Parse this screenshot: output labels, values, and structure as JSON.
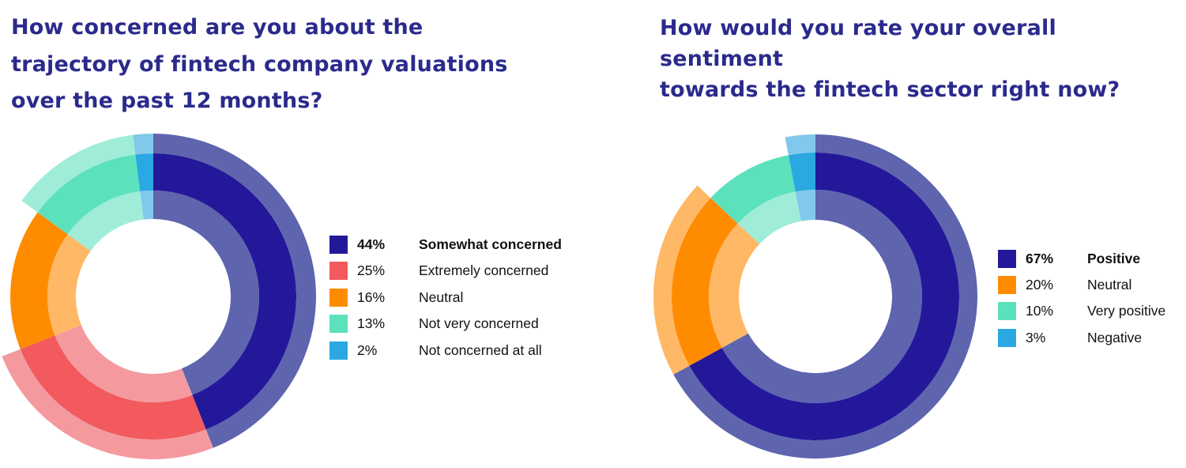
{
  "chart_data": [
    {
      "type": "pie",
      "title": "How concerned are you about the trajectory of fintech company valuations over the past 12 months?",
      "title_lines": [
        "How concerned are you about the",
        "trajectory of fintech company valuations",
        "over the past 12 months?"
      ],
      "legend_placement": "right",
      "slices": [
        {
          "label": "Somewhat concerned",
          "value": 44,
          "pct_label": "44%",
          "color": "#24189a",
          "light": "#5e65ae",
          "outer_ring": true,
          "bold": true
        },
        {
          "label": "Extremely concerned",
          "value": 25,
          "pct_label": "25%",
          "color": "#f25a5e",
          "light": "#f49a9f",
          "outer_ring": true,
          "bold": false
        },
        {
          "label": "Neutral",
          "value": 16,
          "pct_label": "16%",
          "color": "#ff8c00",
          "light": "#ffb866",
          "outer_ring": false,
          "bold": false
        },
        {
          "label": "Not very concerned",
          "value": 13,
          "pct_label": "13%",
          "color": "#5ce1bd",
          "light": "#9fedd8",
          "outer_ring": true,
          "bold": false
        },
        {
          "label": "Not concerned at all",
          "value": 2,
          "pct_label": "2%",
          "color": "#2ba8e2",
          "light": "#80c9ec",
          "outer_ring": true,
          "bold": false
        }
      ]
    },
    {
      "type": "pie",
      "title": "How would you rate your overall sentiment towards the fintech sector right now?",
      "title_lines": [
        "How would you rate your overall sentiment",
        "towards the fintech sector right now?"
      ],
      "legend_placement": "right",
      "slices": [
        {
          "label": "Positive",
          "value": 67,
          "pct_label": "67%",
          "color": "#24189a",
          "light": "#5e65ae",
          "outer_ring": true,
          "bold": true
        },
        {
          "label": "Neutral",
          "value": 20,
          "pct_label": "20%",
          "color": "#ff8c00",
          "light": "#ffb866",
          "outer_ring": true,
          "bold": false
        },
        {
          "label": "Very positive",
          "value": 10,
          "pct_label": "10%",
          "color": "#5ce1bd",
          "light": "#9fedd8",
          "outer_ring": false,
          "bold": false
        },
        {
          "label": "Negative",
          "value": 3,
          "pct_label": "3%",
          "color": "#2ba8e2",
          "light": "#80c9ec",
          "outer_ring": true,
          "bold": false
        }
      ]
    }
  ]
}
